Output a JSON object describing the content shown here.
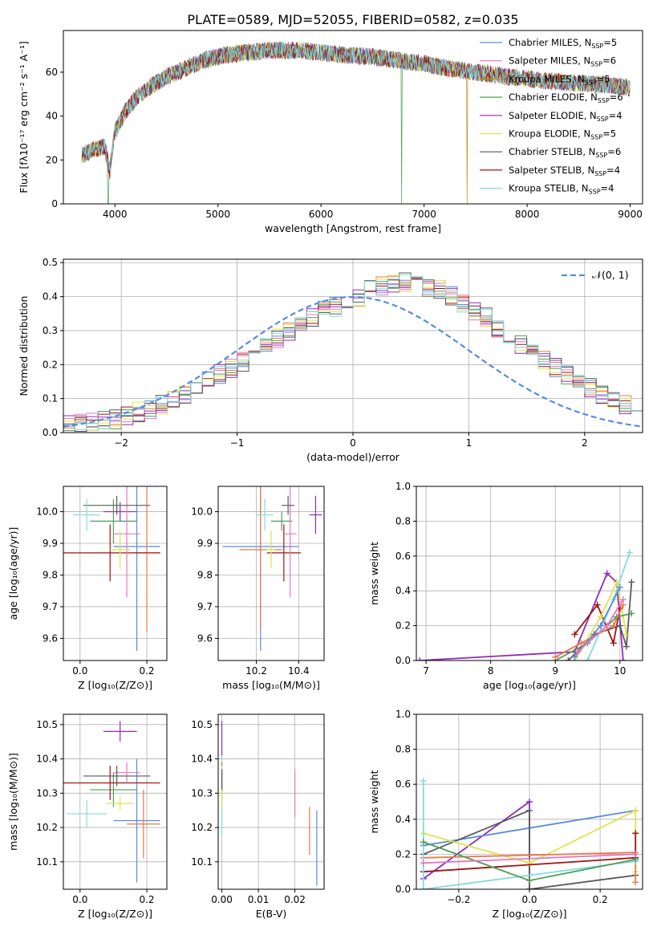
{
  "figure": {
    "title": "PLATE=0589, MJD=52055, FIBERID=0582, z=0.035"
  },
  "series_colors": [
    "#5b8bdb",
    "#e8784a",
    "#4f9e55",
    "#b5312d",
    "#8d2cb8",
    "#8c5a52",
    "#e276c2",
    "#e0e34c",
    "#c08a1a",
    "#59595c",
    "#83dbdc",
    "#a01313"
  ],
  "legend": [
    {
      "label": "Chabrier MILES, N",
      "sub": "SSP",
      "suffix": "=5",
      "color": "#5b8bdb"
    },
    {
      "label": "Salpeter MILES, N",
      "sub": "SSP",
      "suffix": "=6",
      "color": "#e276c2"
    },
    {
      "label": "Kroupa MILES, N",
      "sub": "SSP",
      "suffix": "=5",
      "color": "#c08a1a"
    },
    {
      "label": "Chabrier ELODIE, N",
      "sub": "SSP",
      "suffix": "=6",
      "color": "#4f9e55"
    },
    {
      "label": "Salpeter ELODIE, N",
      "sub": "SSP",
      "suffix": "=4",
      "color": "#8d2cb8"
    },
    {
      "label": "Kroupa ELODIE, N",
      "sub": "SSP",
      "suffix": "=5",
      "color": "#e0e34c"
    },
    {
      "label": "Chabrier STELIB, N",
      "sub": "SSP",
      "suffix": "=6",
      "color": "#59595c"
    },
    {
      "label": "Salpeter STELIB, N",
      "sub": "SSP",
      "suffix": "=4",
      "color": "#a01313"
    },
    {
      "label": "Kroupa STELIB, N",
      "sub": "SSP",
      "suffix": "=4",
      "color": "#83dbdc"
    }
  ],
  "chart_data": [
    {
      "id": "spectrum",
      "type": "line",
      "xlabel": "wavelength [Angstrom, rest frame]",
      "ylabel": "Flux [fλ10⁻¹⁷ erg cm⁻² s⁻¹ A⁻¹]",
      "xlim": [
        3500,
        9120
      ],
      "ylim": [
        0,
        79
      ],
      "xticks": [
        4000,
        5000,
        6000,
        7000,
        8000,
        9000
      ],
      "yticks": [
        0,
        20,
        40,
        60
      ],
      "continuum": {
        "x": [
          3680,
          3800,
          3900,
          3950,
          4000,
          4100,
          4200,
          4300,
          4400,
          4500,
          4700,
          4900,
          5100,
          5300,
          5500,
          5800,
          6000,
          6200,
          6500,
          6800,
          7000,
          7200,
          7500,
          7800,
          8000,
          8200,
          8500,
          8800,
          9000
        ],
        "y": [
          22,
          25,
          26,
          15,
          33,
          42,
          48,
          52,
          55,
          58,
          62,
          66,
          68,
          69,
          70,
          70,
          69,
          68,
          67,
          65,
          64,
          62,
          60,
          58,
          57,
          56,
          55,
          54,
          53
        ]
      },
      "dips": [
        {
          "x": 3935,
          "y": 0
        },
        {
          "x": 6780,
          "y": 0
        },
        {
          "x": 7420,
          "y": 0
        }
      ]
    },
    {
      "id": "residuals",
      "type": "area",
      "xlabel": "(data-model)/error",
      "ylabel": "Normed distribution",
      "xlim": [
        -2.5,
        2.5
      ],
      "ylim": [
        0,
        0.51
      ],
      "xticks": [
        -2,
        -1,
        0,
        1,
        2
      ],
      "yticks": [
        0.0,
        0.1,
        0.2,
        0.3,
        0.4,
        0.5
      ],
      "reference_label": "𝒩(0, 1)",
      "bin_width": 0.1,
      "histogram_base": [
        0.022,
        0.025,
        0.03,
        0.035,
        0.04,
        0.05,
        0.06,
        0.07,
        0.08,
        0.095,
        0.11,
        0.13,
        0.15,
        0.17,
        0.19,
        0.21,
        0.23,
        0.26,
        0.28,
        0.3,
        0.32,
        0.34,
        0.36,
        0.37,
        0.39,
        0.4,
        0.42,
        0.43,
        0.44,
        0.445,
        0.44,
        0.43,
        0.42,
        0.4,
        0.38,
        0.36,
        0.34,
        0.31,
        0.29,
        0.26,
        0.24,
        0.21,
        0.19,
        0.17,
        0.15,
        0.13,
        0.11,
        0.095,
        0.08,
        0.07
      ]
    },
    {
      "id": "age-vs-Z",
      "type": "scatter",
      "xlabel": "Z [log₁₀(Z/Z⊙)]",
      "ylabel": "age  [log₁₀(age/yr)]",
      "xlim": [
        -0.05,
        0.26
      ],
      "ylim": [
        9.53,
        10.08
      ],
      "xticks": [
        0.0,
        0.2
      ],
      "yticks": [
        9.6,
        9.7,
        9.8,
        9.9,
        10.0
      ],
      "points": [
        {
          "x": 0.17,
          "y": 9.89,
          "ex": 0.07,
          "ey": 0.33,
          "c": "#5b8bdb"
        },
        {
          "x": 0.2,
          "y": 9.87,
          "ex": 0.04,
          "ey": 0.25,
          "c": "#e8784a"
        },
        {
          "x": 0.1,
          "y": 9.97,
          "ex": 0.07,
          "ey": 0.07,
          "c": "#4f9e55"
        },
        {
          "x": 0.09,
          "y": 9.87,
          "ex": 0.15,
          "ey": 0.09,
          "c": "#a01313"
        },
        {
          "x": 0.12,
          "y": 10.0,
          "ex": 0.05,
          "ey": 0.03,
          "c": "#8d2cb8"
        },
        {
          "x": 0.14,
          "y": 9.93,
          "ex": 0.04,
          "ey": 0.2,
          "c": "#e276c2"
        },
        {
          "x": 0.12,
          "y": 9.88,
          "ex": 0.03,
          "ey": 0.06,
          "c": "#e0e34c"
        },
        {
          "x": 0.11,
          "y": 10.02,
          "ex": 0.1,
          "ey": 0.03,
          "c": "#59595c"
        },
        {
          "x": 0.02,
          "y": 9.99,
          "ex": 0.04,
          "ey": 0.05,
          "c": "#83dbdc"
        }
      ]
    },
    {
      "id": "age-vs-mass",
      "type": "scatter",
      "xlabel": "mass [log₁₀(M/M⊙)]",
      "ylabel": "",
      "xlim": [
        10.02,
        10.52
      ],
      "ylim": [
        9.53,
        10.08
      ],
      "xticks": [
        10.2,
        10.4
      ],
      "yticks": [
        9.6,
        9.7,
        9.8,
        9.9,
        10.0
      ],
      "points": [
        {
          "x": 10.22,
          "y": 9.89,
          "ex": 0.18,
          "ey": 0.33,
          "c": "#5b8bdb"
        },
        {
          "x": 10.22,
          "y": 9.88,
          "ex": 0.1,
          "ey": 0.25,
          "c": "#e8784a"
        },
        {
          "x": 10.32,
          "y": 9.97,
          "ex": 0.05,
          "ey": 0.03,
          "c": "#4f9e55"
        },
        {
          "x": 10.33,
          "y": 9.87,
          "ex": 0.08,
          "ey": 0.09,
          "c": "#a01313"
        },
        {
          "x": 10.48,
          "y": 9.99,
          "ex": 0.03,
          "ey": 0.06,
          "c": "#8d2cb8"
        },
        {
          "x": 10.36,
          "y": 9.93,
          "ex": 0.03,
          "ey": 0.2,
          "c": "#e276c2"
        },
        {
          "x": 10.27,
          "y": 9.88,
          "ex": 0.02,
          "ey": 0.06,
          "c": "#e0e34c"
        },
        {
          "x": 10.35,
          "y": 10.02,
          "ex": 0.03,
          "ey": 0.03,
          "c": "#59595c"
        },
        {
          "x": 10.24,
          "y": 9.99,
          "ex": 0.04,
          "ey": 0.05,
          "c": "#83dbdc"
        }
      ]
    },
    {
      "id": "mass-weight-vs-age",
      "type": "line",
      "xlabel": "age  [log₁₀(age/yr)]",
      "ylabel": "mass weight",
      "xlim": [
        6.85,
        10.35
      ],
      "ylim": [
        0,
        1.0
      ],
      "xticks": [
        7,
        8,
        9,
        10
      ],
      "yticks": [
        0.0,
        0.2,
        0.4,
        0.6,
        0.8,
        1.0
      ],
      "series": [
        {
          "c": "#8d2cb8",
          "x": [
            6.9,
            9.3,
            9.8,
            9.95,
            10.05
          ],
          "y": [
            0.0,
            0.05,
            0.5,
            0.45,
            0.0
          ]
        },
        {
          "c": "#a01313",
          "x": [
            9.3,
            9.65,
            9.9,
            10.0
          ],
          "y": [
            0.15,
            0.32,
            0.1,
            0.3
          ]
        },
        {
          "c": "#83dbdc",
          "x": [
            9.5,
            9.9,
            10.15
          ],
          "y": [
            0.0,
            0.35,
            0.62
          ]
        },
        {
          "c": "#59595c",
          "x": [
            9.2,
            9.6,
            10.0,
            10.1,
            10.18
          ],
          "y": [
            0.0,
            0.15,
            0.2,
            0.08,
            0.45
          ]
        },
        {
          "c": "#e0e34c",
          "x": [
            9.3,
            9.7,
            9.95,
            10.1
          ],
          "y": [
            0.0,
            0.25,
            0.45,
            0.15
          ]
        },
        {
          "c": "#4f9e55",
          "x": [
            9.0,
            9.5,
            9.95,
            10.18
          ],
          "y": [
            0.0,
            0.1,
            0.25,
            0.27
          ]
        },
        {
          "c": "#e8784a",
          "x": [
            9.0,
            9.4,
            9.9,
            10.05
          ],
          "y": [
            0.02,
            0.1,
            0.2,
            0.32
          ]
        },
        {
          "c": "#5b8bdb",
          "x": [
            9.3,
            9.7,
            10.0
          ],
          "y": [
            0.02,
            0.2,
            0.42
          ]
        },
        {
          "c": "#e276c2",
          "x": [
            9.35,
            9.8,
            10.05
          ],
          "y": [
            0.05,
            0.2,
            0.35
          ]
        }
      ]
    },
    {
      "id": "mass-vs-Z",
      "type": "scatter",
      "xlabel": "Z [log₁₀(Z/Z⊙)]",
      "ylabel": "mass [log₁₀(M/M⊙)]",
      "xlim": [
        -0.05,
        0.26
      ],
      "ylim": [
        10.02,
        10.53
      ],
      "xticks": [
        0.0,
        0.2
      ],
      "yticks": [
        10.1,
        10.2,
        10.3,
        10.4,
        10.5
      ],
      "points": [
        {
          "x": 0.17,
          "y": 10.22,
          "ex": 0.07,
          "ey": 0.18,
          "c": "#5b8bdb"
        },
        {
          "x": 0.19,
          "y": 10.21,
          "ex": 0.05,
          "ey": 0.1,
          "c": "#e8784a"
        },
        {
          "x": 0.1,
          "y": 10.31,
          "ex": 0.07,
          "ey": 0.05,
          "c": "#4f9e55"
        },
        {
          "x": 0.09,
          "y": 10.33,
          "ex": 0.15,
          "ey": 0.05,
          "c": "#a01313"
        },
        {
          "x": 0.12,
          "y": 10.48,
          "ex": 0.05,
          "ey": 0.03,
          "c": "#8d2cb8"
        },
        {
          "x": 0.14,
          "y": 10.36,
          "ex": 0.04,
          "ey": 0.03,
          "c": "#e276c2"
        },
        {
          "x": 0.12,
          "y": 10.27,
          "ex": 0.04,
          "ey": 0.02,
          "c": "#e0e34c"
        },
        {
          "x": 0.11,
          "y": 10.35,
          "ex": 0.1,
          "ey": 0.03,
          "c": "#59595c"
        },
        {
          "x": 0.02,
          "y": 10.24,
          "ex": 0.06,
          "ey": 0.04,
          "c": "#83dbdc"
        }
      ]
    },
    {
      "id": "mass-vs-ebv",
      "type": "scatter",
      "xlabel": "E(B-V)",
      "ylabel": "",
      "xlim": [
        -0.001,
        0.028
      ],
      "ylim": [
        10.02,
        10.53
      ],
      "xticks": [
        0.0,
        0.01,
        0.02
      ],
      "yticks": [
        10.1,
        10.2,
        10.3,
        10.4,
        10.5
      ],
      "points": [
        {
          "x": 0.026,
          "y": 10.14,
          "ex": 0.0,
          "ey": 0.11,
          "c": "#5b8bdb"
        },
        {
          "x": 0.024,
          "y": 10.19,
          "ex": 0.0,
          "ey": 0.07,
          "c": "#e8784a"
        },
        {
          "x": 0.0,
          "y": 10.32,
          "ex": 0.0,
          "ey": 0.07,
          "c": "#4f9e55"
        },
        {
          "x": 0.0,
          "y": 10.33,
          "ex": 0.0,
          "ey": 0.03,
          "c": "#a01313"
        },
        {
          "x": 0.0,
          "y": 10.46,
          "ex": 0.0,
          "ey": 0.05,
          "c": "#8d2cb8"
        },
        {
          "x": 0.02,
          "y": 10.3,
          "ex": 0.0,
          "ey": 0.07,
          "c": "#e276c2"
        },
        {
          "x": 0.0,
          "y": 10.3,
          "ex": 0.0,
          "ey": 0.08,
          "c": "#e0e34c"
        },
        {
          "x": 0.0,
          "y": 10.34,
          "ex": 0.0,
          "ey": 0.03,
          "c": "#59595c"
        },
        {
          "x": 0.0,
          "y": 10.22,
          "ex": 0.0,
          "ey": 0.04,
          "c": "#83dbdc"
        }
      ]
    },
    {
      "id": "mass-weight-vs-Z",
      "type": "line",
      "xlabel": "Z [log₁₀(Z/Z⊙)]",
      "ylabel": "mass weight",
      "xlim": [
        -0.32,
        0.32
      ],
      "ylim": [
        0,
        1.0
      ],
      "xticks": [
        -0.2,
        0.0,
        0.2
      ],
      "yticks": [
        0.0,
        0.2,
        0.4,
        0.6,
        0.8,
        1.0
      ],
      "series": [
        {
          "c": "#8d2cb8",
          "x": [
            -0.3,
            0.0,
            0.0
          ],
          "y": [
            0.06,
            0.5,
            0.0
          ]
        },
        {
          "c": "#5b8bdb",
          "x": [
            -0.3,
            0.3
          ],
          "y": [
            0.25,
            0.45
          ]
        },
        {
          "c": "#59595c",
          "x": [
            -0.3,
            0.0,
            0.0,
            0.3
          ],
          "y": [
            0.2,
            0.45,
            0.0,
            0.08
          ]
        },
        {
          "c": "#e0e34c",
          "x": [
            -0.3,
            0.0,
            0.3,
            0.3
          ],
          "y": [
            0.32,
            0.15,
            0.45,
            0.1
          ]
        },
        {
          "c": "#e8784a",
          "x": [
            -0.3,
            0.3,
            0.3
          ],
          "y": [
            0.18,
            0.21,
            0.04
          ]
        },
        {
          "c": "#a01313",
          "x": [
            -0.3,
            0.3,
            0.3
          ],
          "y": [
            0.1,
            0.18,
            0.32
          ]
        },
        {
          "c": "#83dbdc",
          "x": [
            -0.3,
            -0.3,
            0.3
          ],
          "y": [
            0.62,
            0.0,
            0.16
          ]
        },
        {
          "c": "#4f9e55",
          "x": [
            -0.3,
            0.0,
            0.3
          ],
          "y": [
            0.27,
            0.05,
            0.17
          ]
        },
        {
          "c": "#e276c2",
          "x": [
            -0.3,
            0.3
          ],
          "y": [
            0.15,
            0.2
          ]
        }
      ]
    }
  ]
}
